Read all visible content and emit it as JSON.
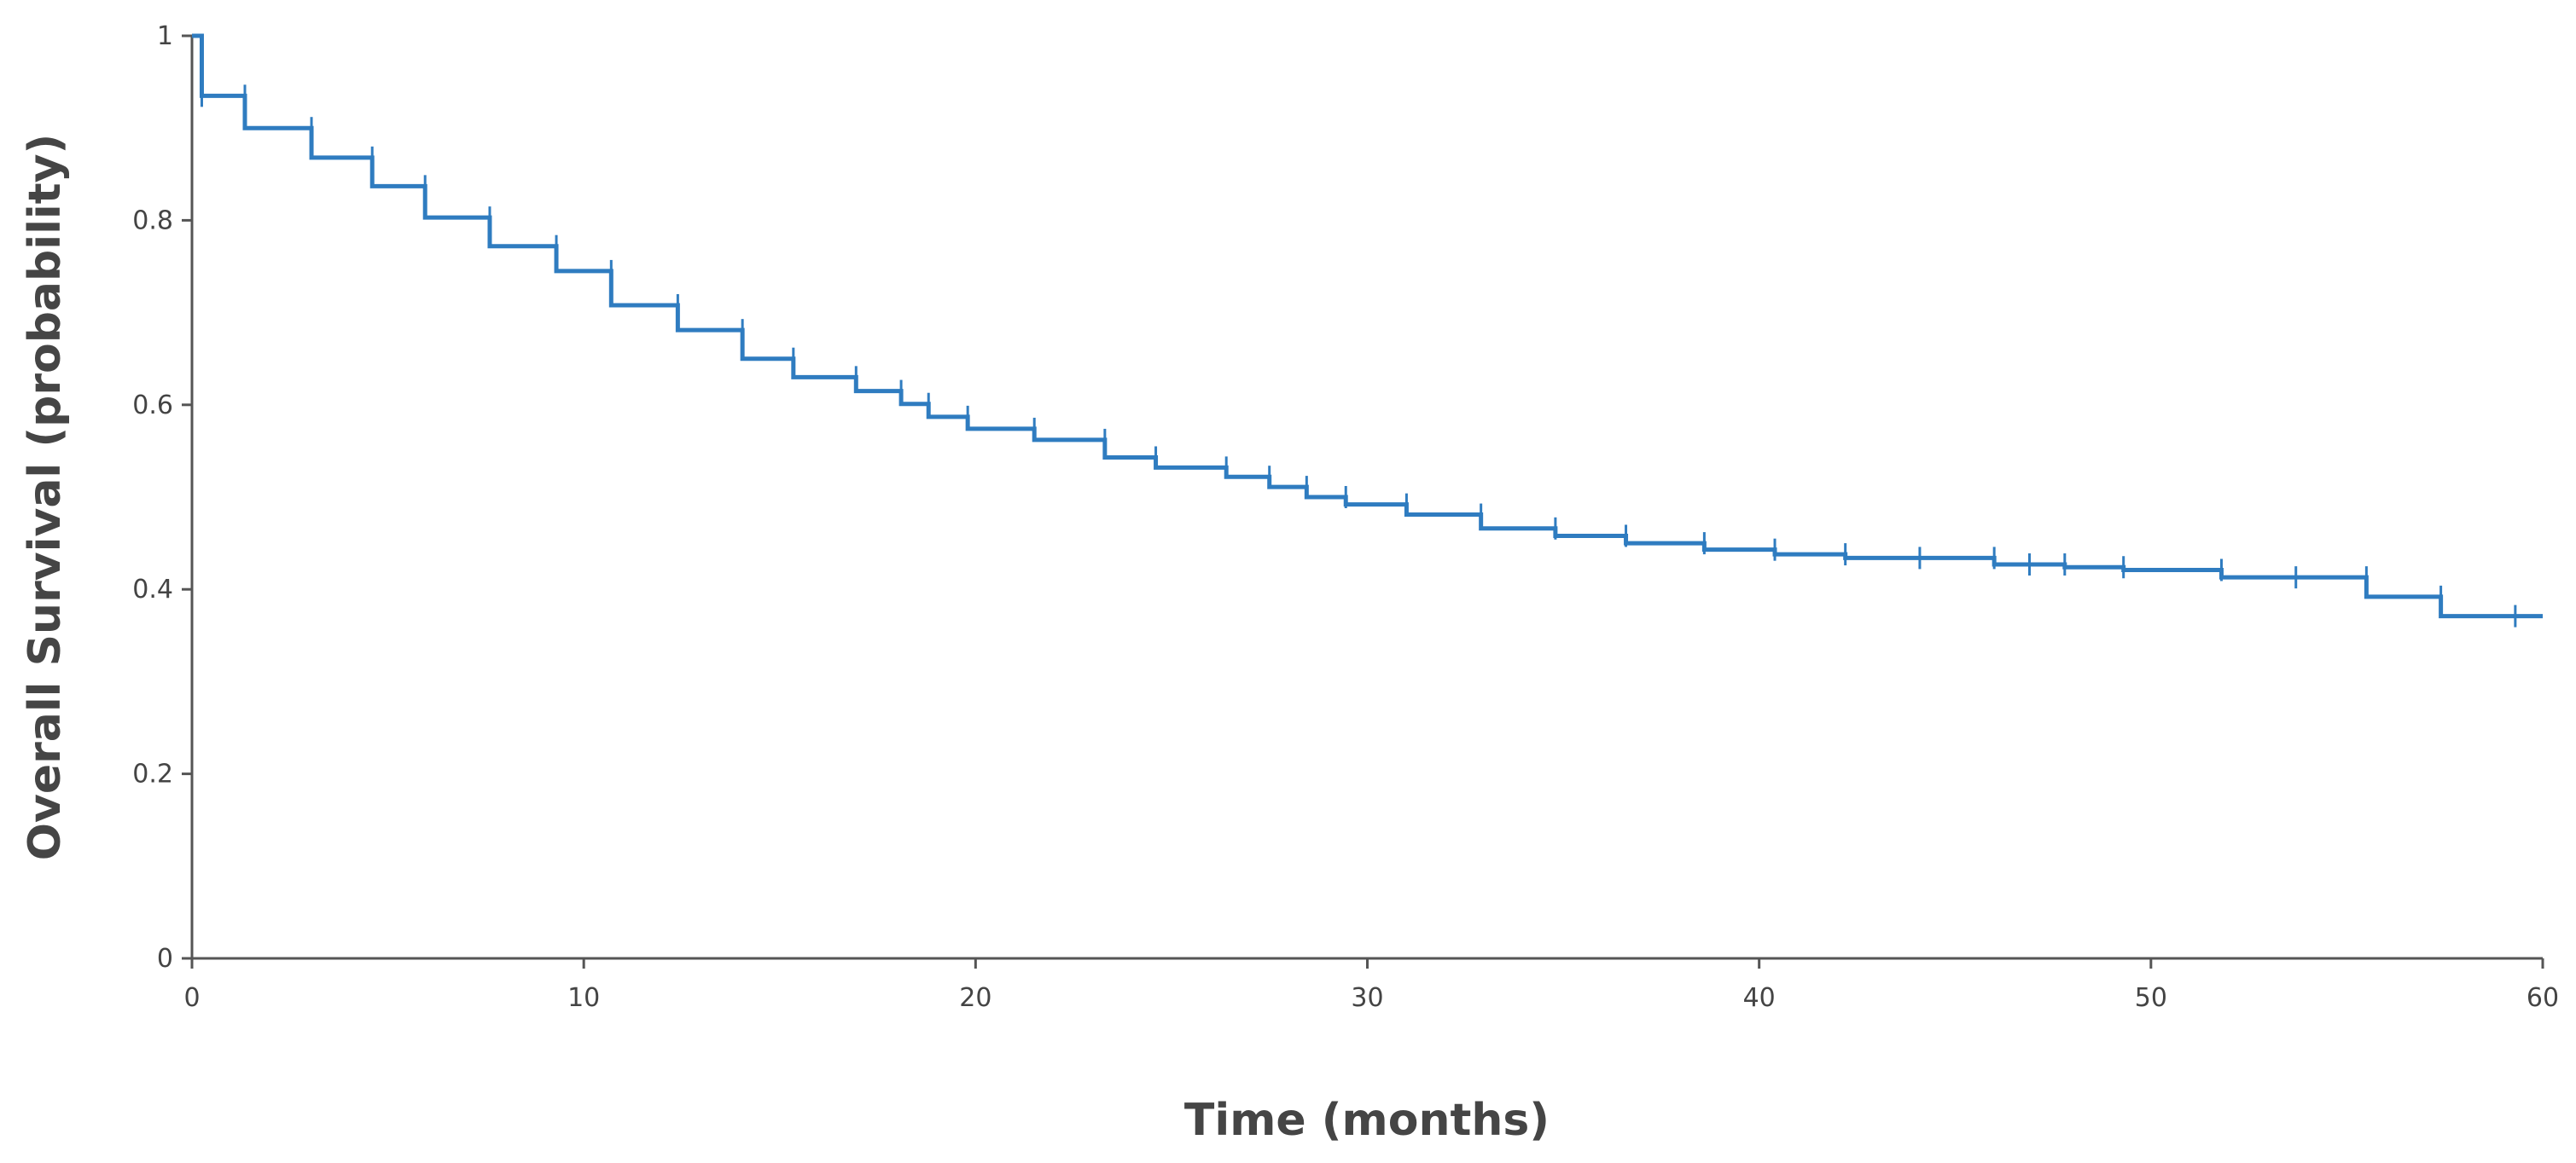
{
  "chart_data": {
    "type": "line",
    "subtype": "kaplan-meier step",
    "title": "",
    "xlabel": "Time (months)",
    "ylabel": "Overall Survival (probability)",
    "xlim": [
      0,
      60
    ],
    "ylim": [
      0,
      1
    ],
    "xticks": [
      "0",
      "10",
      "20",
      "30",
      "40",
      "50",
      "60"
    ],
    "yticks": [
      "0",
      "0.2",
      "0.4",
      "0.6",
      "0.8",
      "1"
    ],
    "grid": false,
    "legend": "none",
    "colors": {
      "series": "#2f7cc0",
      "axis": "#555555"
    },
    "series": [
      {
        "steps": [
          {
            "x": 0,
            "y": 1.0
          },
          {
            "x": 0.25,
            "y": 0.935
          },
          {
            "x": 1.35,
            "y": 0.9
          },
          {
            "x": 3.05,
            "y": 0.868
          },
          {
            "x": 4.6,
            "y": 0.837
          },
          {
            "x": 5.95,
            "y": 0.803
          },
          {
            "x": 7.6,
            "y": 0.772
          },
          {
            "x": 9.3,
            "y": 0.745
          },
          {
            "x": 10.7,
            "y": 0.708
          },
          {
            "x": 12.4,
            "y": 0.681
          },
          {
            "x": 14.05,
            "y": 0.65
          },
          {
            "x": 15.35,
            "y": 0.63
          },
          {
            "x": 16.95,
            "y": 0.615
          },
          {
            "x": 18.1,
            "y": 0.601
          },
          {
            "x": 18.8,
            "y": 0.587
          },
          {
            "x": 19.8,
            "y": 0.574
          },
          {
            "x": 21.5,
            "y": 0.562
          },
          {
            "x": 23.3,
            "y": 0.543
          },
          {
            "x": 24.6,
            "y": 0.532
          },
          {
            "x": 26.4,
            "y": 0.522
          },
          {
            "x": 27.5,
            "y": 0.511
          },
          {
            "x": 28.45,
            "y": 0.5
          },
          {
            "x": 29.45,
            "y": 0.492
          },
          {
            "x": 31.0,
            "y": 0.481
          },
          {
            "x": 32.9,
            "y": 0.466
          },
          {
            "x": 34.8,
            "y": 0.458
          },
          {
            "x": 36.6,
            "y": 0.45
          },
          {
            "x": 38.6,
            "y": 0.443
          },
          {
            "x": 40.4,
            "y": 0.438
          },
          {
            "x": 42.2,
            "y": 0.434
          },
          {
            "x": 46.0,
            "y": 0.427
          },
          {
            "x": 47.8,
            "y": 0.424
          },
          {
            "x": 49.3,
            "y": 0.421
          },
          {
            "x": 51.8,
            "y": 0.413
          },
          {
            "x": 55.5,
            "y": 0.392
          },
          {
            "x": 57.4,
            "y": 0.371
          }
        ],
        "end_x": 60,
        "censored": [
          {
            "x": 0.25,
            "y": 0.935
          },
          {
            "x": 1.35,
            "y": 0.935
          },
          {
            "x": 3.05,
            "y": 0.9
          },
          {
            "x": 4.6,
            "y": 0.868
          },
          {
            "x": 5.95,
            "y": 0.837
          },
          {
            "x": 7.6,
            "y": 0.803
          },
          {
            "x": 9.3,
            "y": 0.772
          },
          {
            "x": 10.7,
            "y": 0.745
          },
          {
            "x": 12.4,
            "y": 0.708
          },
          {
            "x": 14.05,
            "y": 0.681
          },
          {
            "x": 15.35,
            "y": 0.65
          },
          {
            "x": 16.95,
            "y": 0.63
          },
          {
            "x": 18.1,
            "y": 0.615
          },
          {
            "x": 18.8,
            "y": 0.601
          },
          {
            "x": 19.8,
            "y": 0.587
          },
          {
            "x": 21.5,
            "y": 0.574
          },
          {
            "x": 23.3,
            "y": 0.562
          },
          {
            "x": 24.6,
            "y": 0.543
          },
          {
            "x": 26.4,
            "y": 0.532
          },
          {
            "x": 27.5,
            "y": 0.522
          },
          {
            "x": 28.45,
            "y": 0.511
          },
          {
            "x": 29.45,
            "y": 0.5
          },
          {
            "x": 31.0,
            "y": 0.492
          },
          {
            "x": 32.9,
            "y": 0.481
          },
          {
            "x": 34.8,
            "y": 0.466
          },
          {
            "x": 36.6,
            "y": 0.458
          },
          {
            "x": 38.6,
            "y": 0.45
          },
          {
            "x": 40.4,
            "y": 0.443
          },
          {
            "x": 42.2,
            "y": 0.438
          },
          {
            "x": 44.1,
            "y": 0.434
          },
          {
            "x": 46.0,
            "y": 0.434
          },
          {
            "x": 46.9,
            "y": 0.427
          },
          {
            "x": 47.8,
            "y": 0.427
          },
          {
            "x": 49.3,
            "y": 0.424
          },
          {
            "x": 51.8,
            "y": 0.421
          },
          {
            "x": 53.7,
            "y": 0.413
          },
          {
            "x": 55.5,
            "y": 0.413
          },
          {
            "x": 57.4,
            "y": 0.392
          },
          {
            "x": 59.3,
            "y": 0.371
          }
        ]
      }
    ]
  }
}
